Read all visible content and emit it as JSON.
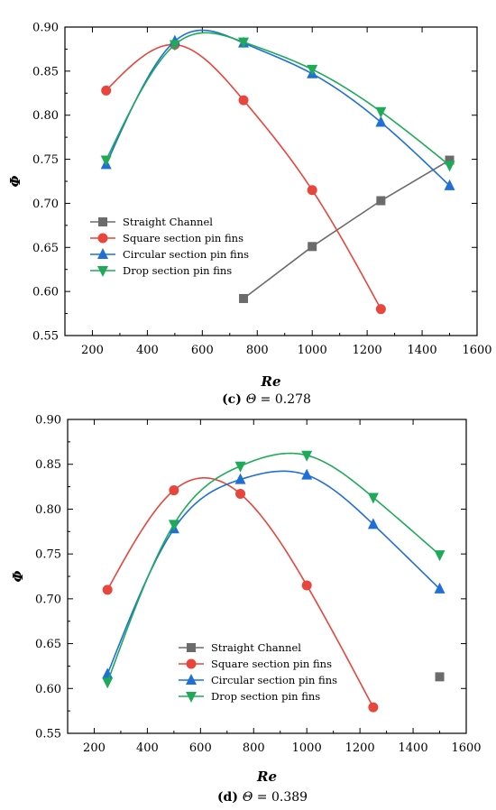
{
  "chart_data": [
    {
      "type": "scatter",
      "caption_label": "(c)",
      "caption_symbol": "Θ",
      "caption_value": " = 0.278",
      "xlabel": "Re",
      "ylabel": "Φ",
      "xlim": [
        100,
        1600
      ],
      "ylim": [
        0.55,
        0.9
      ],
      "xticks": [
        200,
        400,
        600,
        800,
        1000,
        1200,
        1400,
        1600
      ],
      "yticks": [
        0.55,
        0.6,
        0.65,
        0.7,
        0.75,
        0.8,
        0.85,
        0.9
      ],
      "ytick_labels": [
        "0.55",
        "0.60",
        "0.65",
        "0.70",
        "0.75",
        "0.80",
        "0.85",
        "0.90"
      ],
      "legend_position": "lower-left",
      "grid": false,
      "series": [
        {
          "name": "Straight Channel",
          "color": "#6b6b6b",
          "marker": "square",
          "fit": "line",
          "x": [
            750,
            1000,
            1250,
            1500
          ],
          "y": [
            0.592,
            0.651,
            0.703,
            0.749
          ]
        },
        {
          "name": "Square section pin fins",
          "color": "#e8453c",
          "marker": "circle",
          "fit": "curve",
          "x": [
            250,
            500,
            750,
            1000,
            1250
          ],
          "y": [
            0.828,
            0.88,
            0.817,
            0.715,
            0.58
          ]
        },
        {
          "name": "Circular section pin fins",
          "color": "#1f6fd6",
          "marker": "triangle-up",
          "fit": "curve",
          "x": [
            250,
            500,
            750,
            1000,
            1250,
            1500
          ],
          "y": [
            0.744,
            0.884,
            0.882,
            0.847,
            0.792,
            0.72
          ]
        },
        {
          "name": "Drop section pin fins",
          "color": "#1faa5a",
          "marker": "triangle-down",
          "fit": "curve",
          "x": [
            250,
            500,
            750,
            1000,
            1250,
            1500
          ],
          "y": [
            0.749,
            0.88,
            0.883,
            0.852,
            0.804,
            0.743
          ]
        }
      ]
    },
    {
      "type": "scatter",
      "caption_label": "(d)",
      "caption_symbol": "Θ",
      "caption_value": " = 0.389",
      "xlabel": "Re",
      "ylabel": "Φ",
      "xlim": [
        100,
        1600
      ],
      "ylim": [
        0.55,
        0.9
      ],
      "xticks": [
        200,
        400,
        600,
        800,
        1000,
        1200,
        1400,
        1600
      ],
      "yticks": [
        0.55,
        0.6,
        0.65,
        0.7,
        0.75,
        0.8,
        0.85,
        0.9
      ],
      "ytick_labels": [
        "0.55",
        "0.60",
        "0.65",
        "0.70",
        "0.75",
        "0.80",
        "0.85",
        "0.90"
      ],
      "legend_position": "lower-center",
      "grid": false,
      "series": [
        {
          "name": "Straight Channel",
          "color": "#6b6b6b",
          "marker": "square",
          "fit": "none",
          "x": [
            1500
          ],
          "y": [
            0.613
          ]
        },
        {
          "name": "Square section pin fins",
          "color": "#e8453c",
          "marker": "circle",
          "fit": "curve",
          "x": [
            250,
            500,
            750,
            1000,
            1250
          ],
          "y": [
            0.71,
            0.821,
            0.817,
            0.715,
            0.579
          ]
        },
        {
          "name": "Circular section pin fins",
          "color": "#1f6fd6",
          "marker": "triangle-up",
          "fit": "curve",
          "x": [
            250,
            500,
            750,
            1000,
            1250,
            1500
          ],
          "y": [
            0.616,
            0.778,
            0.833,
            0.838,
            0.783,
            0.711
          ]
        },
        {
          "name": "Drop section pin fins",
          "color": "#1faa5a",
          "marker": "triangle-down",
          "fit": "curve",
          "x": [
            250,
            500,
            750,
            1000,
            1250,
            1500
          ],
          "y": [
            0.607,
            0.783,
            0.848,
            0.86,
            0.813,
            0.749
          ]
        }
      ]
    }
  ]
}
